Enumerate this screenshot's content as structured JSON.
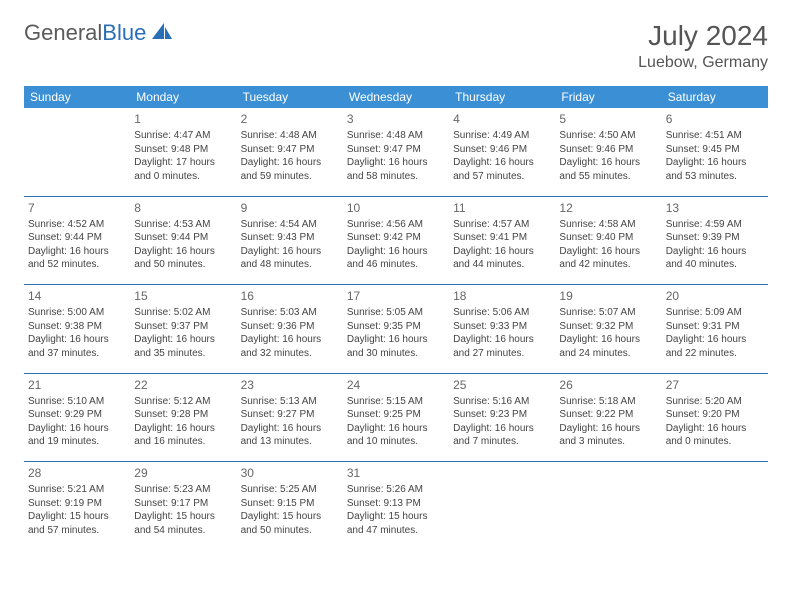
{
  "brand": {
    "word1": "General",
    "word2": "Blue"
  },
  "title": "July 2024",
  "location": "Luebow, Germany",
  "colors": {
    "header_bg": "#3b8fd4",
    "header_text": "#ffffff",
    "rule": "#2a6fb5",
    "body_text": "#444444",
    "title_text": "#555555",
    "logo_gray": "#5a5a5a",
    "logo_blue": "#2a6fb5",
    "page_bg": "#ffffff"
  },
  "fonts": {
    "title_size_pt": 21,
    "location_size_pt": 12,
    "dayheader_size_pt": 9,
    "cell_size_pt": 7.5,
    "daynum_size_pt": 9
  },
  "day_headers": [
    "Sunday",
    "Monday",
    "Tuesday",
    "Wednesday",
    "Thursday",
    "Friday",
    "Saturday"
  ],
  "weeks": [
    [
      null,
      {
        "n": "1",
        "sr": "4:47 AM",
        "ss": "9:48 PM",
        "dl": "17 hours and 0 minutes."
      },
      {
        "n": "2",
        "sr": "4:48 AM",
        "ss": "9:47 PM",
        "dl": "16 hours and 59 minutes."
      },
      {
        "n": "3",
        "sr": "4:48 AM",
        "ss": "9:47 PM",
        "dl": "16 hours and 58 minutes."
      },
      {
        "n": "4",
        "sr": "4:49 AM",
        "ss": "9:46 PM",
        "dl": "16 hours and 57 minutes."
      },
      {
        "n": "5",
        "sr": "4:50 AM",
        "ss": "9:46 PM",
        "dl": "16 hours and 55 minutes."
      },
      {
        "n": "6",
        "sr": "4:51 AM",
        "ss": "9:45 PM",
        "dl": "16 hours and 53 minutes."
      }
    ],
    [
      {
        "n": "7",
        "sr": "4:52 AM",
        "ss": "9:44 PM",
        "dl": "16 hours and 52 minutes."
      },
      {
        "n": "8",
        "sr": "4:53 AM",
        "ss": "9:44 PM",
        "dl": "16 hours and 50 minutes."
      },
      {
        "n": "9",
        "sr": "4:54 AM",
        "ss": "9:43 PM",
        "dl": "16 hours and 48 minutes."
      },
      {
        "n": "10",
        "sr": "4:56 AM",
        "ss": "9:42 PM",
        "dl": "16 hours and 46 minutes."
      },
      {
        "n": "11",
        "sr": "4:57 AM",
        "ss": "9:41 PM",
        "dl": "16 hours and 44 minutes."
      },
      {
        "n": "12",
        "sr": "4:58 AM",
        "ss": "9:40 PM",
        "dl": "16 hours and 42 minutes."
      },
      {
        "n": "13",
        "sr": "4:59 AM",
        "ss": "9:39 PM",
        "dl": "16 hours and 40 minutes."
      }
    ],
    [
      {
        "n": "14",
        "sr": "5:00 AM",
        "ss": "9:38 PM",
        "dl": "16 hours and 37 minutes."
      },
      {
        "n": "15",
        "sr": "5:02 AM",
        "ss": "9:37 PM",
        "dl": "16 hours and 35 minutes."
      },
      {
        "n": "16",
        "sr": "5:03 AM",
        "ss": "9:36 PM",
        "dl": "16 hours and 32 minutes."
      },
      {
        "n": "17",
        "sr": "5:05 AM",
        "ss": "9:35 PM",
        "dl": "16 hours and 30 minutes."
      },
      {
        "n": "18",
        "sr": "5:06 AM",
        "ss": "9:33 PM",
        "dl": "16 hours and 27 minutes."
      },
      {
        "n": "19",
        "sr": "5:07 AM",
        "ss": "9:32 PM",
        "dl": "16 hours and 24 minutes."
      },
      {
        "n": "20",
        "sr": "5:09 AM",
        "ss": "9:31 PM",
        "dl": "16 hours and 22 minutes."
      }
    ],
    [
      {
        "n": "21",
        "sr": "5:10 AM",
        "ss": "9:29 PM",
        "dl": "16 hours and 19 minutes."
      },
      {
        "n": "22",
        "sr": "5:12 AM",
        "ss": "9:28 PM",
        "dl": "16 hours and 16 minutes."
      },
      {
        "n": "23",
        "sr": "5:13 AM",
        "ss": "9:27 PM",
        "dl": "16 hours and 13 minutes."
      },
      {
        "n": "24",
        "sr": "5:15 AM",
        "ss": "9:25 PM",
        "dl": "16 hours and 10 minutes."
      },
      {
        "n": "25",
        "sr": "5:16 AM",
        "ss": "9:23 PM",
        "dl": "16 hours and 7 minutes."
      },
      {
        "n": "26",
        "sr": "5:18 AM",
        "ss": "9:22 PM",
        "dl": "16 hours and 3 minutes."
      },
      {
        "n": "27",
        "sr": "5:20 AM",
        "ss": "9:20 PM",
        "dl": "16 hours and 0 minutes."
      }
    ],
    [
      {
        "n": "28",
        "sr": "5:21 AM",
        "ss": "9:19 PM",
        "dl": "15 hours and 57 minutes."
      },
      {
        "n": "29",
        "sr": "5:23 AM",
        "ss": "9:17 PM",
        "dl": "15 hours and 54 minutes."
      },
      {
        "n": "30",
        "sr": "5:25 AM",
        "ss": "9:15 PM",
        "dl": "15 hours and 50 minutes."
      },
      {
        "n": "31",
        "sr": "5:26 AM",
        "ss": "9:13 PM",
        "dl": "15 hours and 47 minutes."
      },
      null,
      null,
      null
    ]
  ],
  "labels": {
    "sunrise": "Sunrise:",
    "sunset": "Sunset:",
    "daylight": "Daylight:"
  }
}
